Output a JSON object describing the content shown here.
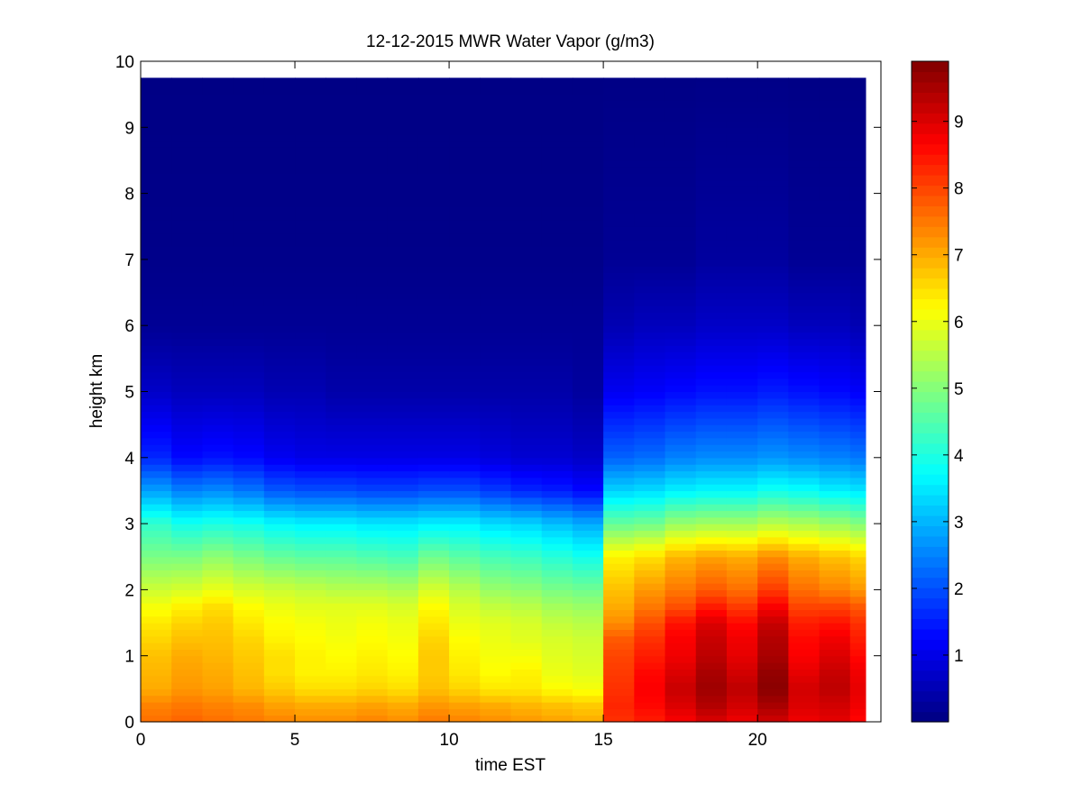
{
  "chart_data": {
    "type": "heatmap",
    "title": "12-12-2015 MWR Water Vapor (g/m3)",
    "xlabel": "time EST",
    "ylabel": "height km",
    "xlim": [
      0,
      24
    ],
    "ylim": [
      0,
      10
    ],
    "x_ticks": [
      0,
      5,
      10,
      15,
      20
    ],
    "y_ticks": [
      0,
      1,
      2,
      3,
      4,
      5,
      6,
      7,
      8,
      9,
      10
    ],
    "colorbar": {
      "colormap": "jet",
      "range": [
        0,
        9.9
      ],
      "ticks": [
        1,
        2,
        3,
        4,
        5,
        6,
        7,
        8,
        9
      ]
    },
    "time_columns": [
      0.5,
      1.5,
      2.5,
      3.5,
      4.5,
      5.5,
      6.5,
      7.5,
      8.5,
      9.5,
      10.5,
      11.5,
      12.5,
      13.5,
      14.5,
      15.5,
      16.5,
      17.5,
      18.5,
      19.5,
      20.5,
      21.5,
      22.5,
      23.5
    ],
    "data_top_km": 9.75,
    "profile_heights_km": [
      0.0,
      0.25,
      0.5,
      0.75,
      1.0,
      1.25,
      1.5,
      1.75,
      2.0,
      2.5,
      3.0,
      3.5,
      4.0,
      5.0,
      6.0,
      7.0,
      10.0
    ],
    "profiles_g_m3": [
      [
        7.6,
        7.4,
        7.0,
        6.9,
        6.8,
        6.6,
        6.4,
        6.1,
        5.7,
        4.9,
        4.2,
        2.8,
        1.6,
        0.7,
        0.2,
        0.1,
        0.05
      ],
      [
        7.7,
        7.5,
        7.2,
        7.1,
        7.0,
        6.8,
        6.6,
        6.3,
        5.8,
        4.9,
        3.9,
        2.5,
        1.3,
        0.6,
        0.2,
        0.1,
        0.05
      ],
      [
        7.6,
        7.4,
        7.1,
        7.0,
        6.9,
        6.8,
        6.7,
        6.5,
        6.0,
        5.1,
        4.0,
        2.6,
        1.4,
        0.6,
        0.2,
        0.1,
        0.05
      ],
      [
        7.5,
        7.3,
        6.9,
        6.8,
        6.7,
        6.6,
        6.4,
        6.2,
        5.8,
        4.9,
        3.9,
        2.4,
        1.3,
        0.6,
        0.2,
        0.1,
        0.05
      ],
      [
        7.4,
        7.1,
        6.7,
        6.5,
        6.5,
        6.3,
        6.2,
        6.0,
        5.7,
        4.7,
        3.7,
        2.1,
        1.1,
        0.5,
        0.2,
        0.1,
        0.05
      ],
      [
        7.3,
        7.0,
        6.5,
        6.3,
        6.3,
        6.2,
        6.1,
        5.9,
        5.6,
        4.6,
        3.6,
        2.0,
        1.0,
        0.5,
        0.2,
        0.1,
        0.05
      ],
      [
        7.3,
        7.0,
        6.5,
        6.3,
        6.2,
        6.1,
        6.0,
        5.9,
        5.5,
        4.6,
        3.6,
        2.0,
        1.0,
        0.4,
        0.2,
        0.1,
        0.05
      ],
      [
        7.4,
        7.1,
        6.6,
        6.4,
        6.3,
        6.2,
        6.1,
        5.9,
        5.5,
        4.5,
        3.5,
        1.9,
        1.0,
        0.4,
        0.2,
        0.1,
        0.05
      ],
      [
        7.3,
        7.0,
        6.5,
        6.3,
        6.2,
        6.1,
        6.0,
        5.8,
        5.4,
        4.4,
        3.5,
        1.9,
        1.0,
        0.4,
        0.2,
        0.1,
        0.05
      ],
      [
        7.5,
        7.2,
        6.8,
        6.7,
        6.7,
        6.6,
        6.4,
        6.2,
        5.8,
        4.8,
        3.6,
        2.0,
        1.0,
        0.4,
        0.2,
        0.1,
        0.05
      ],
      [
        7.4,
        7.1,
        6.6,
        6.4,
        6.3,
        6.2,
        6.0,
        5.8,
        5.5,
        4.6,
        3.6,
        2.0,
        1.0,
        0.4,
        0.2,
        0.1,
        0.05
      ],
      [
        7.3,
        7.0,
        6.4,
        6.2,
        6.1,
        6.0,
        5.9,
        5.6,
        5.2,
        4.4,
        3.4,
        1.8,
        0.9,
        0.4,
        0.2,
        0.1,
        0.05
      ],
      [
        7.2,
        6.9,
        6.4,
        6.3,
        6.1,
        5.9,
        5.8,
        5.5,
        5.1,
        4.3,
        3.3,
        1.6,
        0.8,
        0.4,
        0.2,
        0.1,
        0.05
      ],
      [
        7.1,
        6.8,
        6.2,
        6.0,
        5.9,
        5.8,
        5.6,
        5.3,
        4.9,
        4.1,
        3.1,
        1.5,
        0.8,
        0.4,
        0.2,
        0.1,
        0.05
      ],
      [
        7.0,
        6.7,
        6.1,
        5.9,
        5.8,
        5.7,
        5.5,
        5.2,
        4.8,
        3.9,
        2.9,
        1.3,
        0.7,
        0.3,
        0.2,
        0.1,
        0.05
      ],
      [
        8.2,
        8.3,
        8.2,
        8.1,
        8.0,
        7.8,
        7.3,
        7.0,
        6.8,
        6.3,
        4.7,
        3.3,
        2.2,
        1.1,
        0.5,
        0.2,
        0.05
      ],
      [
        8.4,
        8.6,
        8.7,
        8.6,
        8.4,
        8.2,
        7.9,
        7.5,
        7.2,
        6.5,
        4.8,
        3.4,
        2.3,
        1.2,
        0.6,
        0.2,
        0.05
      ],
      [
        8.7,
        9.0,
        9.2,
        9.0,
        8.8,
        8.7,
        8.5,
        7.9,
        7.5,
        6.9,
        5.2,
        3.6,
        2.5,
        1.3,
        0.6,
        0.2,
        0.05
      ],
      [
        9.0,
        9.4,
        9.6,
        9.5,
        9.3,
        9.2,
        9.0,
        8.4,
        7.8,
        7.1,
        5.3,
        3.7,
        2.6,
        1.4,
        0.7,
        0.3,
        0.05
      ],
      [
        8.8,
        9.1,
        9.3,
        9.1,
        8.9,
        8.8,
        8.6,
        8.1,
        7.6,
        7.0,
        5.3,
        3.7,
        2.6,
        1.4,
        0.7,
        0.3,
        0.05
      ],
      [
        9.1,
        9.5,
        9.8,
        9.7,
        9.5,
        9.4,
        9.2,
        8.7,
        8.1,
        7.3,
        5.5,
        3.9,
        2.7,
        1.5,
        0.7,
        0.3,
        0.05
      ],
      [
        8.8,
        9.0,
        9.1,
        8.9,
        8.7,
        8.6,
        8.4,
        8.0,
        7.6,
        7.0,
        5.4,
        3.8,
        2.6,
        1.4,
        0.6,
        0.2,
        0.05
      ],
      [
        8.9,
        9.1,
        9.3,
        9.2,
        9.0,
        8.8,
        8.5,
        8.0,
        7.4,
        6.8,
        5.2,
        3.6,
        2.5,
        1.3,
        0.6,
        0.2,
        0.05
      ],
      [
        8.6,
        8.8,
        8.9,
        8.8,
        8.6,
        8.4,
        8.2,
        7.8,
        7.2,
        6.6,
        5.0,
        3.5,
        2.4,
        1.2,
        0.5,
        0.2,
        0.05
      ]
    ]
  }
}
